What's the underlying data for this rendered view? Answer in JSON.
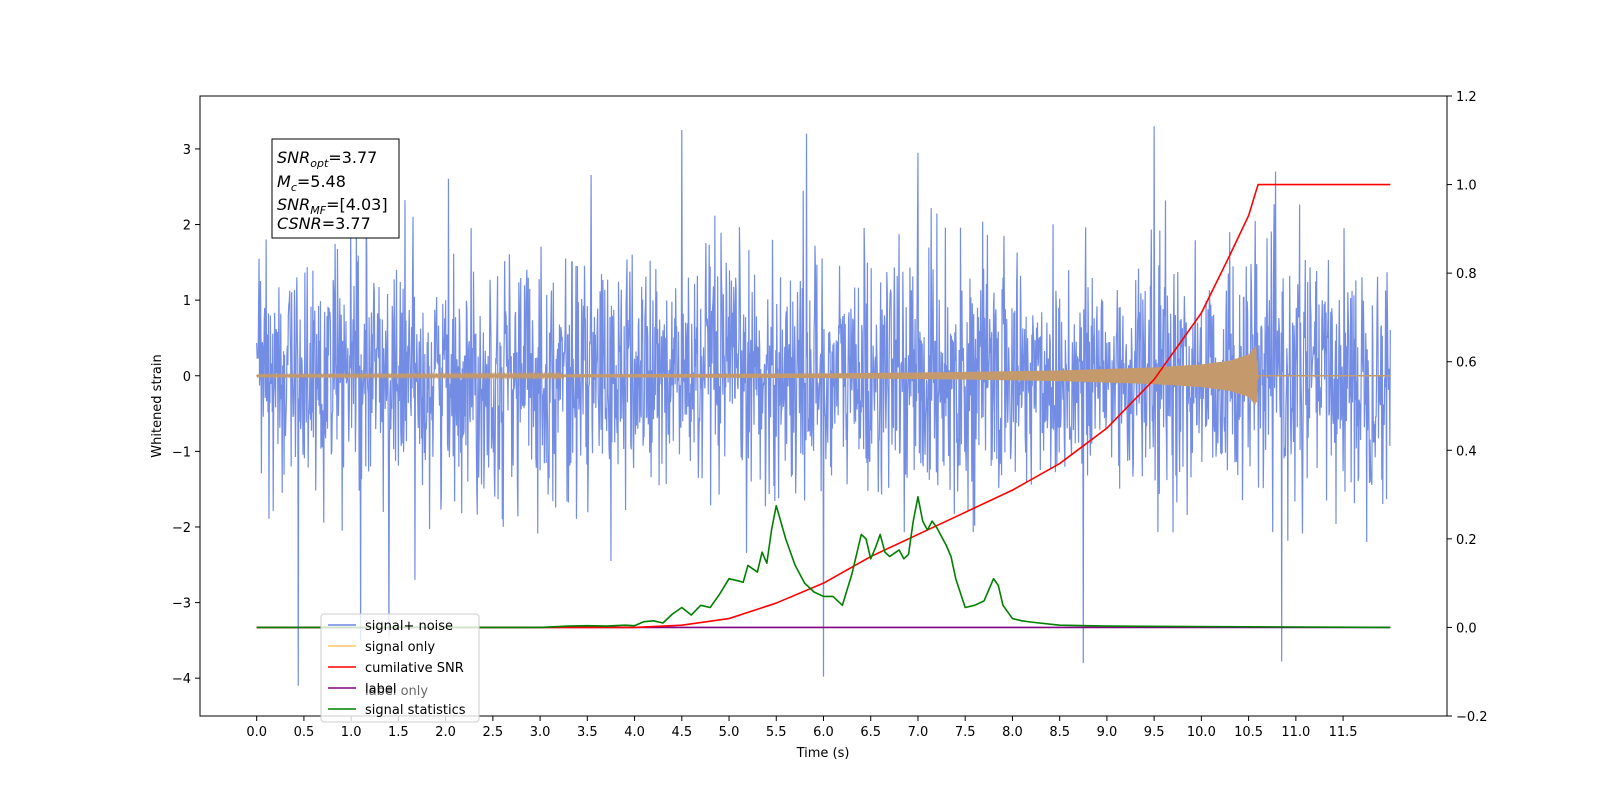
{
  "chart_data": {
    "type": "line",
    "xlabel": "Time (s)",
    "ylabel": "Whitened strain",
    "x_ticks": [
      "0.0",
      "0.5",
      "1.0",
      "1.5",
      "2.0",
      "2.5",
      "3.0",
      "3.5",
      "4.0",
      "4.5",
      "5.0",
      "5.5",
      "6.0",
      "6.5",
      "7.0",
      "7.5",
      "8.0",
      "8.5",
      "9.0",
      "9.5",
      "10.0",
      "10.5",
      "11.0",
      "11.5"
    ],
    "y_left_ticks": [
      "3",
      "2",
      "1",
      "0",
      "−1",
      "−2",
      "−3",
      "−4"
    ],
    "y_right_ticks": [
      "1.2",
      "1.0",
      "0.8",
      "0.6",
      "0.4",
      "0.2",
      "0.0",
      "−0.2"
    ],
    "xlim": [
      -0.6,
      12.6
    ],
    "ylim_left": [
      -4.5,
      3.7
    ],
    "ylim_right": [
      -0.2,
      1.2
    ],
    "grid": false,
    "legend_position": "lower-left",
    "annotation": {
      "lines": [
        {
          "base": "SNR",
          "sub": "opt",
          "value": "=3.77"
        },
        {
          "base": "M",
          "sub": "c",
          "value": "=5.48"
        },
        {
          "base": "SNR",
          "sub": "MF",
          "value": "=[4.03]"
        },
        {
          "base": "CSNR",
          "sub": "",
          "value": "=3.77"
        }
      ]
    },
    "legend": [
      {
        "label": "signal+ noise",
        "color": "#6b87e4"
      },
      {
        "label": "signal only",
        "color": "#ffc766"
      },
      {
        "label": "cumilative SNR",
        "color": "#ff0000"
      },
      {
        "label": "label",
        "color": "#800080"
      },
      {
        "label": "signal statistics",
        "color": "#008000"
      }
    ],
    "legend_overlap_text": "label only",
    "series": [
      {
        "name": "signal+ noise",
        "axis": "left",
        "color": "#6b87e4",
        "x_range": [
          0.0,
          12.0
        ],
        "typical_amplitude": 1.6,
        "extremes": [
          {
            "x": 0.44,
            "y": -4.1
          },
          {
            "x": 1.1,
            "y": -3.5
          },
          {
            "x": 1.4,
            "y": -3.45
          },
          {
            "x": 4.5,
            "y": 3.25
          },
          {
            "x": 5.82,
            "y": 3.2
          },
          {
            "x": 6.0,
            "y": -3.98
          },
          {
            "x": 7.0,
            "y": 2.95
          },
          {
            "x": 8.75,
            "y": -3.8
          },
          {
            "x": 9.5,
            "y": 3.3
          },
          {
            "x": 10.85,
            "y": -3.78
          }
        ]
      },
      {
        "name": "signal only",
        "axis": "left",
        "color": "#c49a6c",
        "x_range": [
          0.0,
          12.0
        ],
        "envelope": {
          "x": [
            0.0,
            2.0,
            4.0,
            6.0,
            7.5,
            8.5,
            9.5,
            10.0,
            10.3,
            10.5,
            10.58,
            10.6
          ],
          "amplitude": [
            0.01,
            0.015,
            0.02,
            0.03,
            0.05,
            0.07,
            0.11,
            0.15,
            0.2,
            0.28,
            0.4,
            0.0
          ]
        }
      },
      {
        "name": "cumilative SNR",
        "axis": "right",
        "color": "#ff0000",
        "x": [
          0.0,
          4.0,
          4.5,
          5.0,
          5.5,
          6.0,
          6.5,
          7.0,
          7.5,
          8.0,
          8.5,
          9.0,
          9.5,
          10.0,
          10.3,
          10.5,
          10.6,
          12.0
        ],
        "values": [
          0.0,
          0.0,
          0.005,
          0.02,
          0.055,
          0.1,
          0.16,
          0.21,
          0.26,
          0.31,
          0.37,
          0.45,
          0.56,
          0.71,
          0.84,
          0.93,
          1.0,
          1.0
        ]
      },
      {
        "name": "label",
        "axis": "right",
        "color": "#800080",
        "x": [
          0.0,
          12.0
        ],
        "values": [
          0.0,
          0.0
        ]
      },
      {
        "name": "signal statistics",
        "axis": "right",
        "color": "#008000",
        "x": [
          0.0,
          3.0,
          3.3,
          3.5,
          3.7,
          3.9,
          4.0,
          4.1,
          4.2,
          4.3,
          4.4,
          4.5,
          4.6,
          4.7,
          4.8,
          4.9,
          5.0,
          5.1,
          5.15,
          5.2,
          5.3,
          5.35,
          5.4,
          5.45,
          5.5,
          5.6,
          5.65,
          5.7,
          5.8,
          5.9,
          6.0,
          6.1,
          6.2,
          6.3,
          6.4,
          6.45,
          6.5,
          6.55,
          6.6,
          6.65,
          6.7,
          6.8,
          6.85,
          6.9,
          6.95,
          7.0,
          7.05,
          7.1,
          7.15,
          7.2,
          7.3,
          7.35,
          7.4,
          7.5,
          7.6,
          7.7,
          7.8,
          7.85,
          7.9,
          8.0,
          8.1,
          8.2,
          8.5,
          9.0,
          12.0
        ],
        "values": [
          0.0,
          0.0,
          0.003,
          0.004,
          0.003,
          0.005,
          0.004,
          0.013,
          0.015,
          0.01,
          0.03,
          0.045,
          0.028,
          0.05,
          0.045,
          0.075,
          0.11,
          0.105,
          0.102,
          0.14,
          0.125,
          0.17,
          0.145,
          0.22,
          0.275,
          0.2,
          0.17,
          0.14,
          0.1,
          0.08,
          0.07,
          0.07,
          0.05,
          0.12,
          0.21,
          0.2,
          0.155,
          0.18,
          0.21,
          0.17,
          0.16,
          0.175,
          0.155,
          0.165,
          0.24,
          0.295,
          0.24,
          0.22,
          0.24,
          0.225,
          0.185,
          0.16,
          0.11,
          0.045,
          0.05,
          0.06,
          0.11,
          0.095,
          0.05,
          0.02,
          0.015,
          0.012,
          0.005,
          0.003,
          0.0
        ]
      }
    ]
  }
}
